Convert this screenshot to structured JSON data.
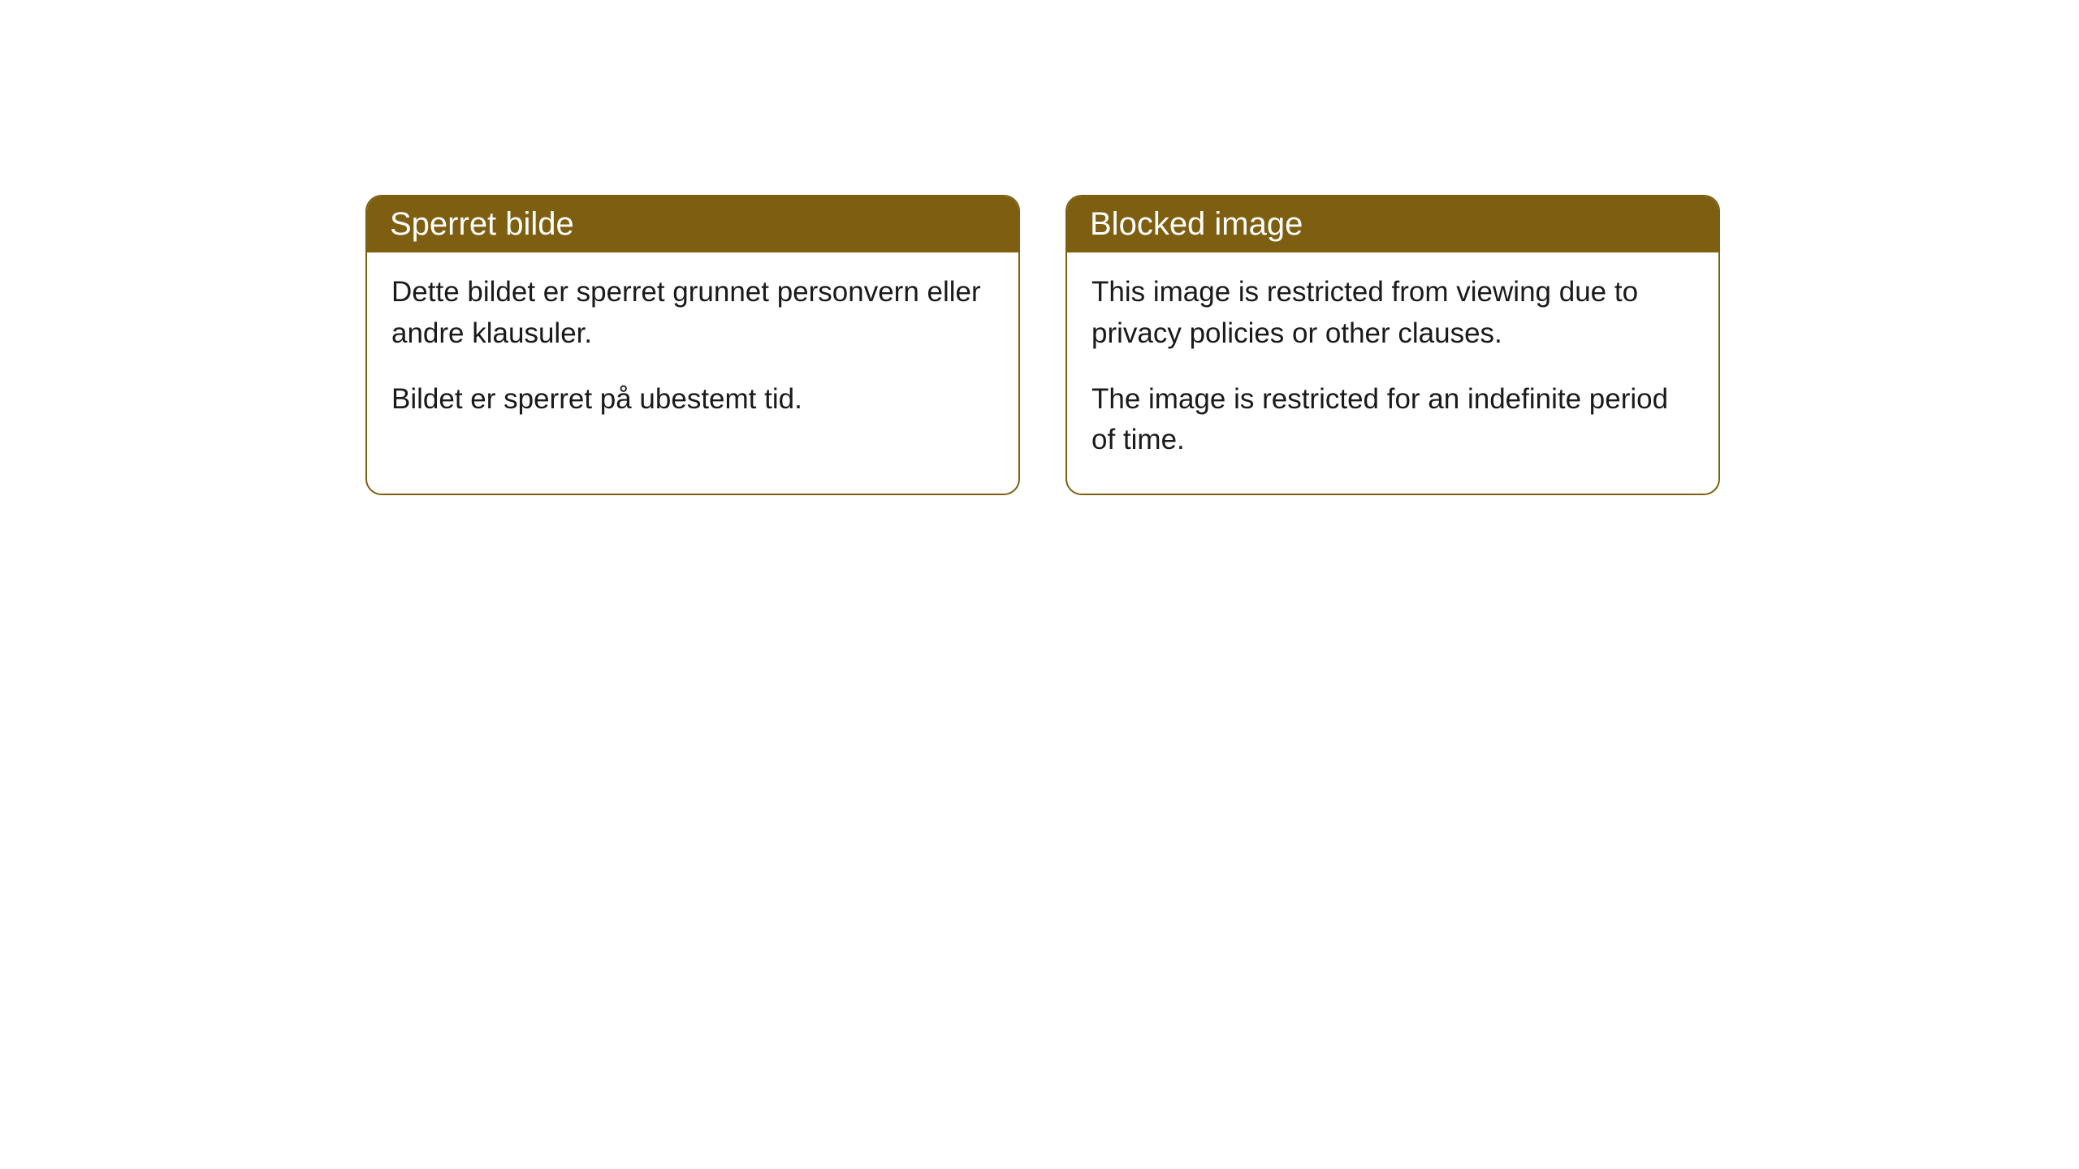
{
  "cards": [
    {
      "title": "Sperret bilde",
      "paragraph1": "Dette bildet er sperret grunnet personvern eller andre klausuler.",
      "paragraph2": "Bildet er sperret på ubestemt tid."
    },
    {
      "title": "Blocked image",
      "paragraph1": "This image is restricted from viewing due to privacy policies or other clauses.",
      "paragraph2": "The image is restricted for an indefinite period of time."
    }
  ],
  "styling": {
    "header_background_color": "#7e5e10",
    "header_text_color": "#ffffff",
    "border_color": "#7e5e10",
    "body_text_color": "#1a1a1a",
    "card_background_color": "#ffffff",
    "page_background_color": "#ffffff",
    "border_radius": 20,
    "title_fontsize": 40,
    "body_fontsize": 35
  }
}
